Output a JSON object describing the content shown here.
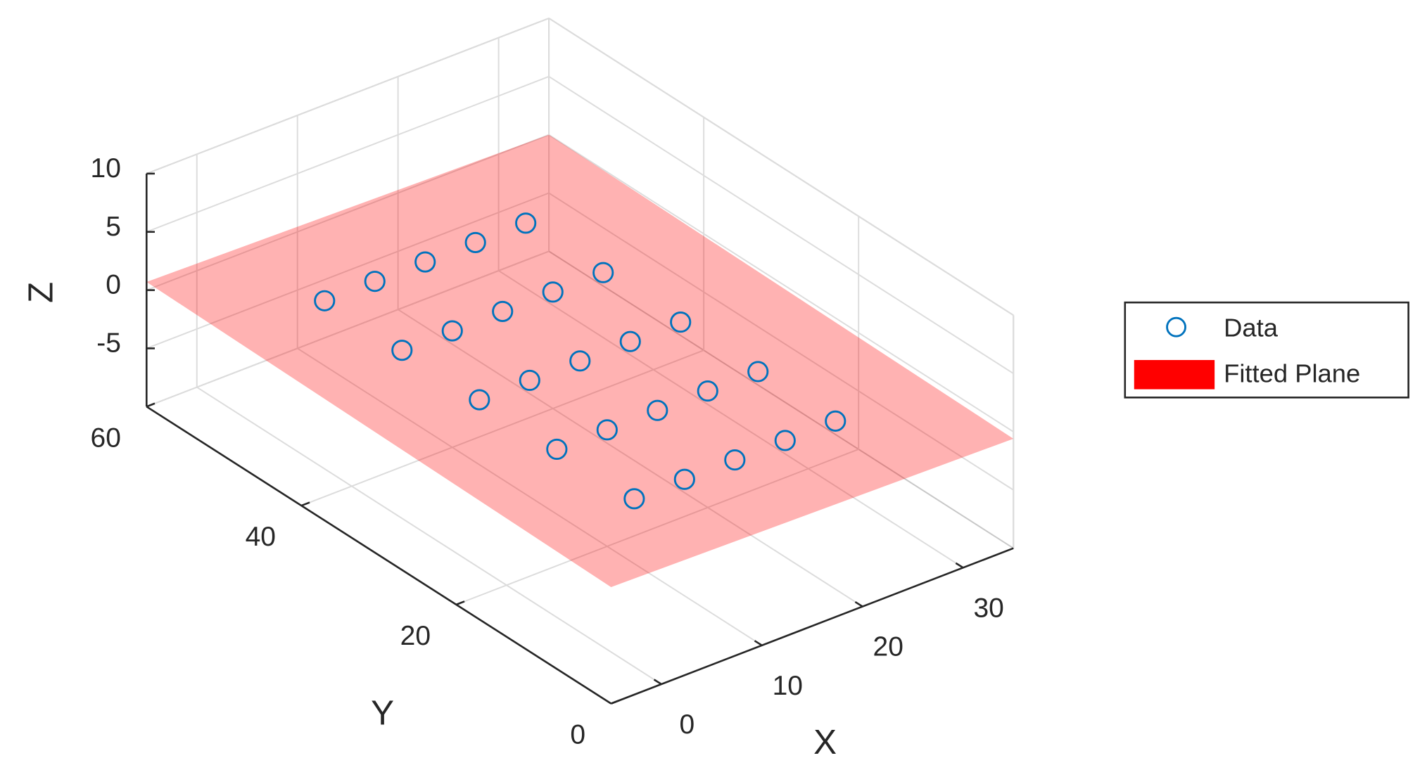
{
  "chart_data": {
    "type": "scatter3d",
    "x_label": "X",
    "y_label": "Y",
    "z_label": "Z",
    "xlim": [
      -5,
      35
    ],
    "ylim": [
      0,
      60
    ],
    "zlim": [
      -10,
      10
    ],
    "xticks": [
      0,
      10,
      20,
      30
    ],
    "yticks": [
      0,
      20,
      40,
      60
    ],
    "zticks": [
      -5,
      0,
      5,
      10
    ],
    "grid": true,
    "legend": "right",
    "series": [
      {
        "name": "Data",
        "color": "#0072bd",
        "x": [
          5,
          10,
          15,
          20,
          25,
          5,
          10,
          15,
          20,
          25,
          5,
          10,
          15,
          20,
          25,
          5,
          10,
          15,
          20,
          25,
          5,
          10,
          15,
          20,
          25
        ],
        "y": [
          10,
          10,
          10,
          10,
          10,
          20,
          20,
          20,
          20,
          20,
          30,
          30,
          30,
          30,
          30,
          40,
          40,
          40,
          40,
          40,
          50,
          50,
          50,
          50,
          50
        ],
        "z": [
          0,
          0,
          0,
          0,
          0,
          0,
          0,
          0,
          0,
          0,
          0,
          0,
          0,
          0,
          0,
          0,
          0,
          0,
          0,
          0,
          0,
          0,
          0,
          0,
          0
        ]
      }
    ],
    "plane": {
      "name": "Fitted Plane",
      "color": "#ff0000",
      "x": [
        -5,
        35
      ],
      "y": [
        0,
        60
      ],
      "z": [
        [
          0,
          -0.6
        ],
        [
          0.7,
          0
        ]
      ]
    }
  }
}
